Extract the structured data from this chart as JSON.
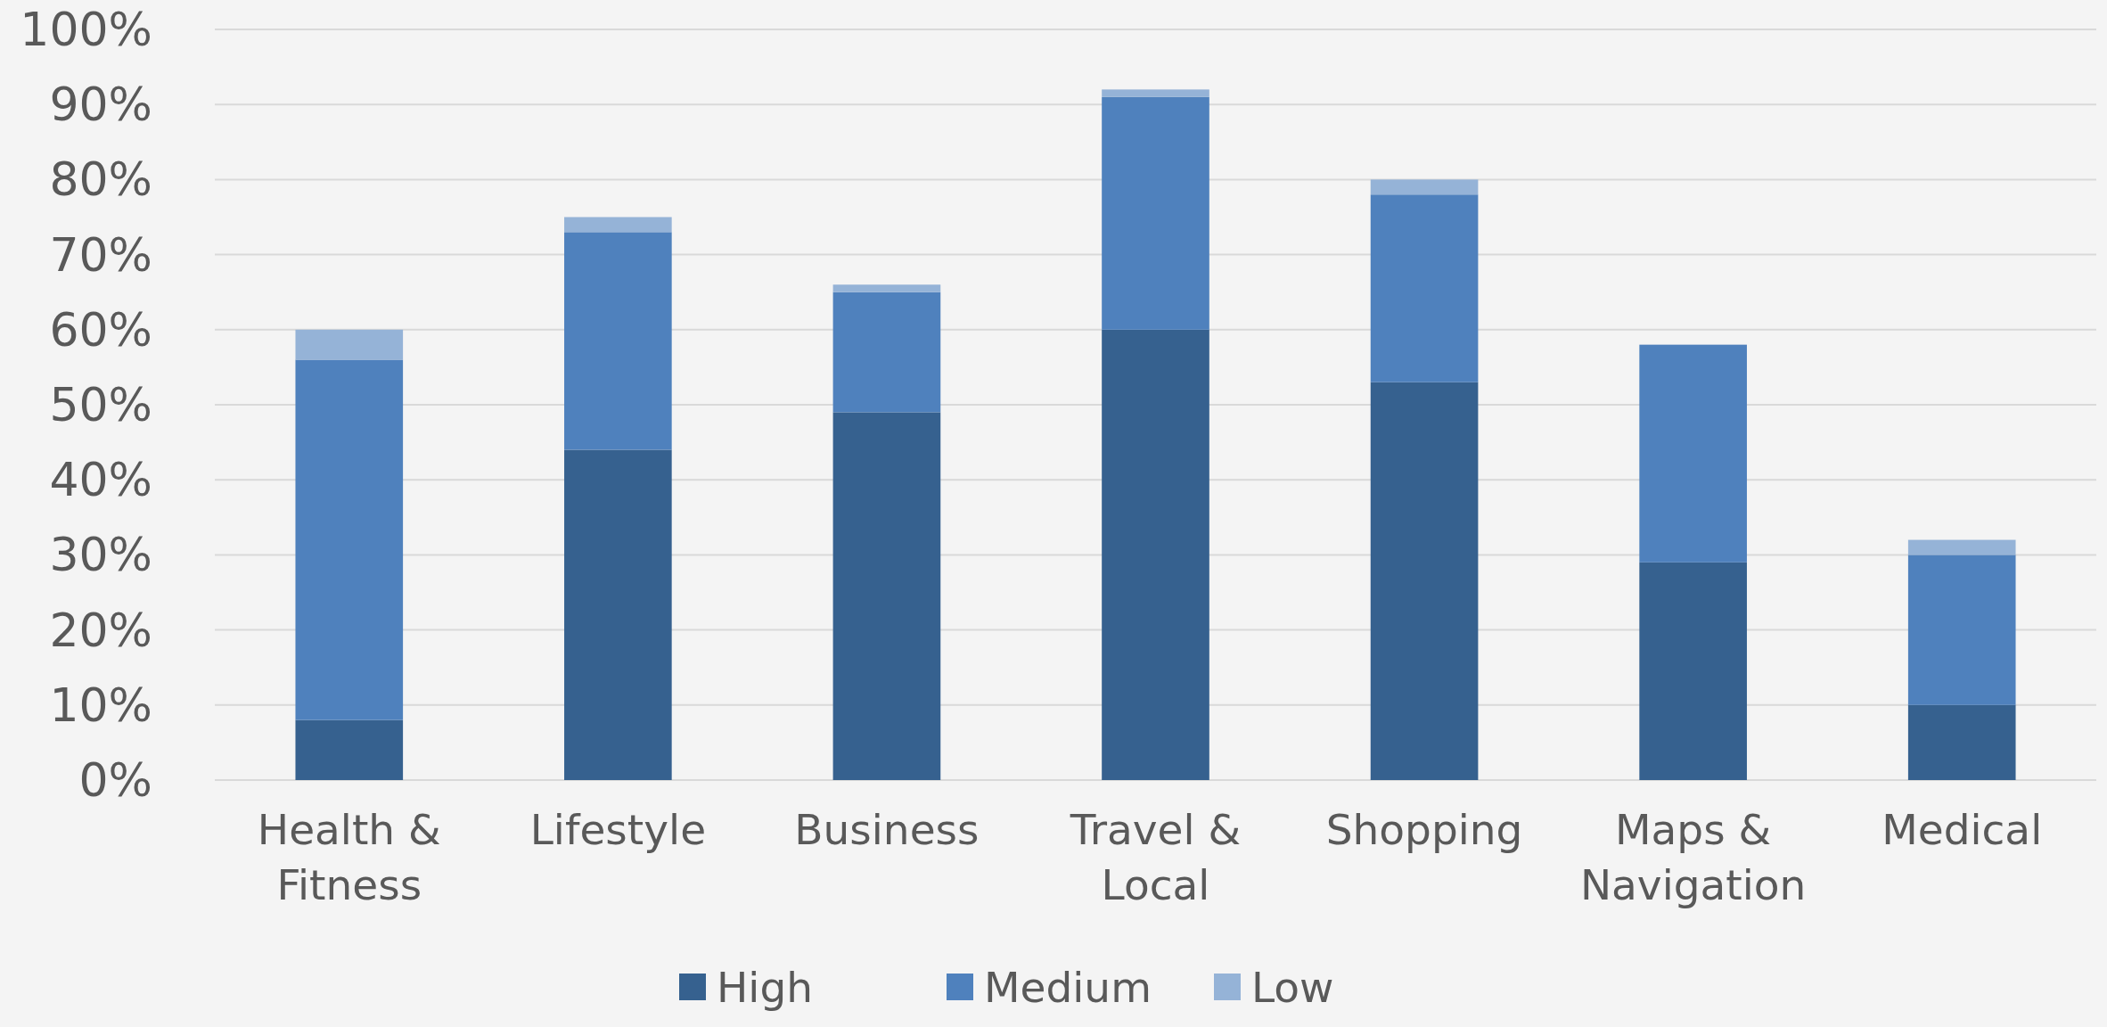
{
  "chart_data": {
    "type": "bar",
    "stacked": true,
    "categories": [
      "Health & Fitness",
      "Lifestyle",
      "Business",
      "Travel & Local",
      "Shopping",
      "Maps & Navigation",
      "Medical"
    ],
    "series": [
      {
        "name": "High",
        "color": "#36618f",
        "values": [
          8,
          44,
          49,
          60,
          53,
          29,
          10
        ]
      },
      {
        "name": "Medium",
        "color": "#4f81bd",
        "values": [
          48,
          29,
          16,
          31,
          25,
          29,
          20
        ]
      },
      {
        "name": "Low",
        "color": "#95b3d7",
        "values": [
          4,
          2,
          1,
          1,
          2,
          0,
          2
        ]
      }
    ],
    "ylim": [
      0,
      100
    ],
    "yticks": [
      {
        "value": 0,
        "label": "0%"
      },
      {
        "value": 10,
        "label": "10%"
      },
      {
        "value": 20,
        "label": "20%"
      },
      {
        "value": 30,
        "label": "30%"
      },
      {
        "value": 40,
        "label": "40%"
      },
      {
        "value": 50,
        "label": "50%"
      },
      {
        "value": 60,
        "label": "60%"
      },
      {
        "value": 70,
        "label": "70%"
      },
      {
        "value": 80,
        "label": "80%"
      },
      {
        "value": 90,
        "label": "90%"
      },
      {
        "value": 100,
        "label": "100%"
      }
    ],
    "grid": "y",
    "legend": "bottom"
  }
}
